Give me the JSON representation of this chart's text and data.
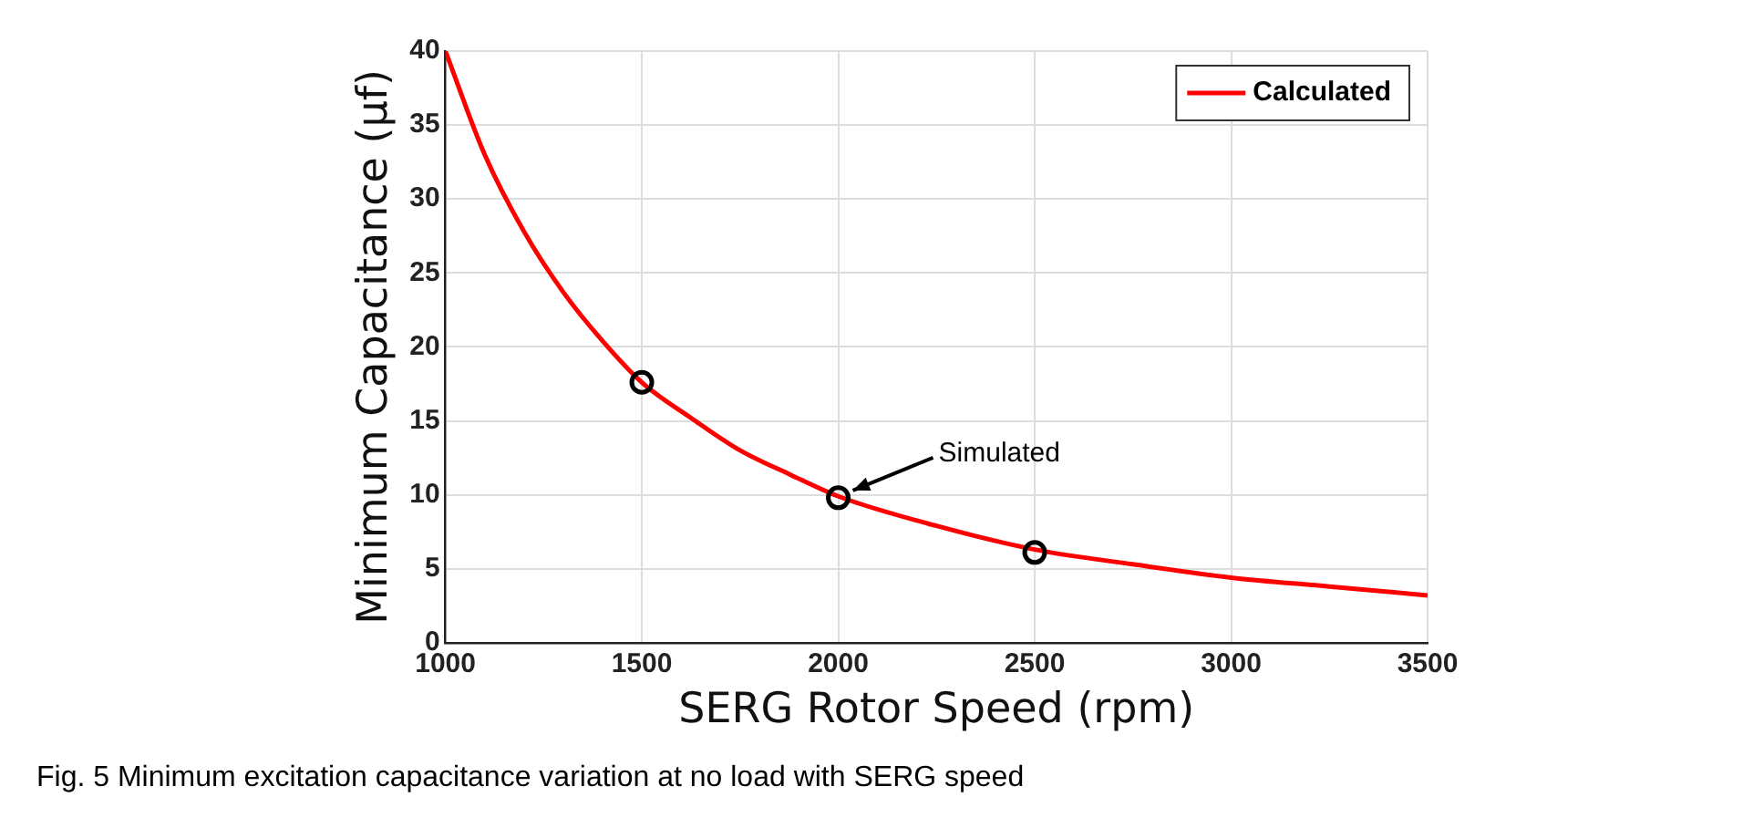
{
  "chart_data": {
    "type": "line",
    "xlabel": "SERG Rotor Speed (rpm)",
    "ylabel": "Minimum Capacitance (µf)",
    "xlim": [
      1000,
      3500
    ],
    "xticks": [
      1000,
      1500,
      2000,
      2500,
      3000,
      3500
    ],
    "ylim": [
      0,
      40
    ],
    "yticks": [
      0,
      5,
      10,
      15,
      20,
      25,
      30,
      35,
      40
    ],
    "grid": true,
    "legend": "top right",
    "series": [
      {
        "name": "Calculated",
        "type": "line",
        "color": "#ff0000",
        "marker": "none",
        "x": [
          1000,
          1100,
          1200,
          1300,
          1400,
          1500,
          1625,
          1750,
          1875,
          2000,
          2250,
          2500,
          2750,
          3000,
          3250,
          3500
        ],
        "values": [
          40,
          33,
          27.8,
          23.7,
          20.4,
          17.6,
          15.2,
          13,
          11.4,
          9.9,
          7.9,
          6.3,
          5.3,
          4.4,
          3.8,
          3.2
        ]
      },
      {
        "type": "scatter",
        "color": "#000000",
        "marker": "circle",
        "x": [
          1500,
          2000,
          2500
        ],
        "values": [
          17.6,
          9.8,
          6.1
        ]
      }
    ],
    "annotations": [
      {
        "text": "Simulated",
        "x": 2000,
        "y": 9.8
      },
      "Fig. 5  Minimum excitation capacitance variation at no load with SERG speed"
    ]
  }
}
